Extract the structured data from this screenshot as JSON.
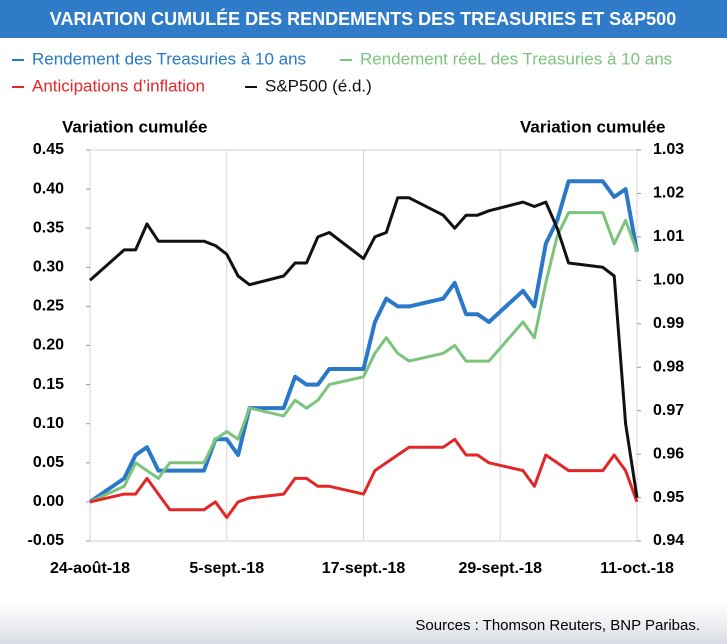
{
  "chart_data": {
    "type": "line",
    "title": "VARIATION CUMULÉE DES RENDEMENTS DES TREASURIES ET S&P500",
    "y_label": "Variation cumulée",
    "y2_label": "Variation cumulée",
    "source": "Sources : Thomson Reuters, BNP Paribas.",
    "x": [
      "2018-08-24",
      "2018-08-27",
      "2018-08-28",
      "2018-08-29",
      "2018-08-30",
      "2018-08-31",
      "2018-09-03",
      "2018-09-04",
      "2018-09-05",
      "2018-09-06",
      "2018-09-07",
      "2018-09-10",
      "2018-09-11",
      "2018-09-12",
      "2018-09-13",
      "2018-09-14",
      "2018-09-17",
      "2018-09-18",
      "2018-09-19",
      "2018-09-20",
      "2018-09-21",
      "2018-09-24",
      "2018-09-25",
      "2018-09-26",
      "2018-09-27",
      "2018-09-28",
      "2018-10-01",
      "2018-10-02",
      "2018-10-03",
      "2018-10-04",
      "2018-10-05",
      "2018-10-08",
      "2018-10-09",
      "2018-10-10",
      "2018-10-11"
    ],
    "xlim": [
      "2018-08-24",
      "2018-10-11"
    ],
    "xticks": [
      {
        "value": "2018-08-24",
        "label": "24-août-18"
      },
      {
        "value": "2018-09-05",
        "label": "5-sept.-18"
      },
      {
        "value": "2018-09-17",
        "label": "17-sept.-18"
      },
      {
        "value": "2018-09-29",
        "label": "29-sept.-18"
      },
      {
        "value": "2018-10-11",
        "label": "11-oct.-18"
      }
    ],
    "ylim": [
      -0.05,
      0.45
    ],
    "yticks": [
      -0.05,
      {
        "value": 0,
        "label": "0.00"
      },
      0.05,
      {
        "value": 0.1,
        "label": "0.10"
      },
      0.15,
      {
        "value": 0.2,
        "label": "0.20"
      },
      0.25,
      {
        "value": 0.3,
        "label": "0.30"
      },
      0.35,
      {
        "value": 0.4,
        "label": "0.40"
      },
      0.45
    ],
    "y2lim": [
      0.94,
      1.03
    ],
    "y2ticks": [
      0.94,
      0.95,
      0.96,
      0.97,
      0.98,
      0.99,
      {
        "value": 1,
        "label": "1.00"
      },
      1.01,
      1.02,
      1.03
    ],
    "xgrid": true,
    "series": [
      {
        "name": "Rendement des Treasuries à 10 ans",
        "color": "#2a78c8",
        "values": [
          0,
          0.03,
          0.06,
          0.07,
          0.04,
          0.04,
          0.04,
          0.08,
          0.08,
          0.06,
          0.12,
          0.12,
          0.16,
          0.15,
          0.15,
          0.17,
          0.17,
          0.23,
          0.26,
          0.25,
          0.25,
          0.26,
          0.28,
          0.24,
          0.24,
          0.23,
          0.27,
          0.25,
          0.33,
          0.36,
          0.41,
          0.41,
          0.39,
          0.4,
          0.32
        ]
      },
      {
        "name": "Rendement réeL des Treasuries à 10 ans",
        "color": "#7cc47c",
        "values": [
          0,
          0.02,
          0.05,
          0.04,
          0.03,
          0.05,
          0.05,
          0.08,
          0.09,
          0.08,
          0.12,
          0.11,
          0.13,
          0.12,
          0.13,
          0.15,
          0.16,
          0.19,
          0.21,
          0.19,
          0.18,
          0.19,
          0.2,
          0.18,
          0.18,
          0.18,
          0.23,
          0.21,
          0.28,
          0.34,
          0.37,
          0.37,
          0.33,
          0.36,
          0.32
        ]
      },
      {
        "name": "Anticipations d’inflation",
        "color": "#e32626",
        "values": [
          0,
          0.01,
          0.01,
          0.03,
          0.01,
          -0.01,
          -0.01,
          0,
          -0.02,
          0,
          0.005,
          0.01,
          0.03,
          0.03,
          0.02,
          0.02,
          0.01,
          0.04,
          0.05,
          0.06,
          0.07,
          0.07,
          0.08,
          0.06,
          0.06,
          0.05,
          0.04,
          0.02,
          0.06,
          0.05,
          0.04,
          0.04,
          0.06,
          0.04,
          0
        ]
      },
      {
        "name": "S&P500 (é.d.)",
        "color": "#111111",
        "axis": "y2",
        "values": [
          1.0,
          1.007,
          1.007,
          1.013,
          1.009,
          1.009,
          1.009,
          1.008,
          1.006,
          1.001,
          0.999,
          1.001,
          1.004,
          1.004,
          1.01,
          1.011,
          1.005,
          1.01,
          1.011,
          1.019,
          1.019,
          1.015,
          1.012,
          1.015,
          1.015,
          1.016,
          1.018,
          1.017,
          1.018,
          1.012,
          1.004,
          1.003,
          1.001,
          0.967,
          0.95
        ]
      }
    ]
  }
}
